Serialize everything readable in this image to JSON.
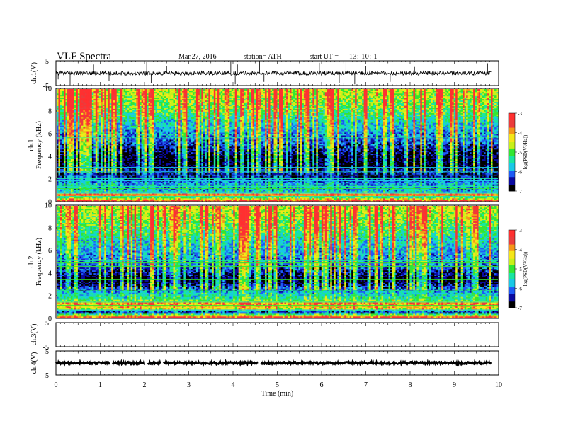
{
  "header": {
    "title": "VLF  Spectra",
    "date": "Mar.27, 2016",
    "station": "station= ATH",
    "start_label": "start  UT  =",
    "start_time": "13: 10: 1"
  },
  "colors": {
    "scale": [
      "#000000",
      "#0a0aa0",
      "#1e5af5",
      "#19c8e6",
      "#19e6a0",
      "#32e632",
      "#c8f019",
      "#f5e619",
      "#f59619",
      "#eb3c3c",
      "#ff3030",
      "#ffffff"
    ],
    "trace": "#000000"
  },
  "chart_data": [
    {
      "id": "ch1-waveform",
      "type": "line",
      "ylabel": "ch.1(V)",
      "ylim": [
        -5,
        5
      ],
      "yticks": [
        "5",
        "-5"
      ],
      "xlim": [
        0,
        10
      ],
      "baseline": 0,
      "noise_amplitude": 0.8,
      "x": [
        0.05,
        0.32,
        0.85,
        1.2,
        2.05,
        2.15,
        2.5,
        3.95,
        4.05,
        4.1,
        4.6,
        4.7,
        5.95,
        6.4,
        6.55,
        6.75,
        7.0,
        7.55,
        8.1,
        9.75
      ],
      "y": [
        -2.5,
        -4.8,
        3.5,
        -3.0,
        4.5,
        -4.0,
        3.0,
        4.8,
        -4.5,
        3.5,
        4.8,
        -3.5,
        4.2,
        -4.0,
        4.5,
        -4.5,
        3.0,
        -3.5,
        2.8,
        4.0
      ]
    },
    {
      "id": "ch1-spectrogram",
      "type": "heatmap",
      "xlabel": "",
      "ylabel": "ch.1\nFrequency  (kHz)",
      "xlim": [
        0,
        10
      ],
      "ylim": [
        0,
        10
      ],
      "yticks": [
        "0",
        "2",
        "4",
        "6",
        "8",
        "10"
      ],
      "colorbar": {
        "label": "log(PSD(V²/Hz))",
        "ticks": [
          "-3",
          "-4",
          "-5",
          "-6",
          "-7"
        ],
        "range": [
          -7,
          -3
        ]
      },
      "profile": [
        [
          0.0,
          -3.2
        ],
        [
          0.3,
          -5.3
        ],
        [
          0.6,
          -3.3
        ],
        [
          0.8,
          -5.6
        ],
        [
          1.0,
          -6.0
        ],
        [
          1.4,
          -5.8
        ],
        [
          1.8,
          -6.2
        ],
        [
          2.3,
          -6.6
        ],
        [
          2.8,
          -6.5
        ],
        [
          3.1,
          -6.9
        ],
        [
          4.0,
          -6.8
        ],
        [
          5.0,
          -6.3
        ],
        [
          5.7,
          -6.0
        ],
        [
          6.0,
          -5.9
        ],
        [
          7.0,
          -5.6
        ],
        [
          8.0,
          -5.1
        ],
        [
          9.0,
          -4.8
        ],
        [
          10.0,
          -4.6
        ]
      ],
      "lines_khz": [
        0.4,
        0.7,
        1.1,
        1.3,
        1.6,
        1.8,
        2.0,
        2.3,
        2.6,
        3.0,
        5.7
      ],
      "line_level": -5.4,
      "sferics_per_min": 14
    },
    {
      "id": "ch2-spectrogram",
      "type": "heatmap",
      "xlabel": "",
      "ylabel": "ch.2\nFrequency  (kHz)",
      "xlim": [
        0,
        10
      ],
      "ylim": [
        0,
        10
      ],
      "yticks": [
        "0",
        "2",
        "4",
        "6",
        "8",
        "10"
      ],
      "colorbar": {
        "label": "log(PSD(V²/Hz))",
        "ticks": [
          "-3",
          "-4",
          "-5",
          "-6",
          "-7"
        ],
        "range": [
          -7,
          -3
        ]
      },
      "profile": [
        [
          0.0,
          -3.3
        ],
        [
          0.3,
          -5.2
        ],
        [
          0.5,
          -6.8
        ],
        [
          0.8,
          -4.6
        ],
        [
          1.0,
          -4.3
        ],
        [
          1.3,
          -4.0
        ],
        [
          1.6,
          -5.3
        ],
        [
          2.0,
          -5.6
        ],
        [
          2.5,
          -6.0
        ],
        [
          3.0,
          -6.6
        ],
        [
          3.5,
          -6.9
        ],
        [
          4.0,
          -6.5
        ],
        [
          4.5,
          -6.2
        ],
        [
          5.0,
          -6.0
        ],
        [
          6.0,
          -5.8
        ],
        [
          7.0,
          -5.5
        ],
        [
          8.0,
          -5.1
        ],
        [
          9.0,
          -4.8
        ],
        [
          10.0,
          -4.6
        ]
      ],
      "lines_khz": [
        0.7,
        1.1,
        1.4,
        2.1,
        2.4,
        3.4,
        4.6,
        4.9,
        5.1
      ],
      "line_level": -5.3,
      "sferics_per_min": 14
    },
    {
      "id": "ch3-waveform",
      "type": "line",
      "ylabel": "ch.3(V)",
      "ylim": [
        -5,
        5
      ],
      "yticks": [
        "5",
        "-5"
      ],
      "xlim": [
        0,
        10
      ],
      "baseline": 5,
      "noise_amplitude": 0,
      "x": [],
      "y": []
    },
    {
      "id": "ch4-waveform",
      "type": "line",
      "ylabel": "ch.4(V)",
      "ylim": [
        -5,
        5
      ],
      "yticks": [
        "5",
        "-5"
      ],
      "xlabel": "Time  (min)",
      "xticks": [
        "0",
        "1",
        "2",
        "3",
        "4",
        "5",
        "6",
        "7",
        "8",
        "9",
        "10"
      ],
      "xlim": [
        0,
        10
      ],
      "baseline": 0,
      "noise_amplitude": 0.55,
      "gaps": [
        1.25,
        2.05,
        2.4,
        4.6
      ],
      "x": [],
      "y": []
    }
  ]
}
